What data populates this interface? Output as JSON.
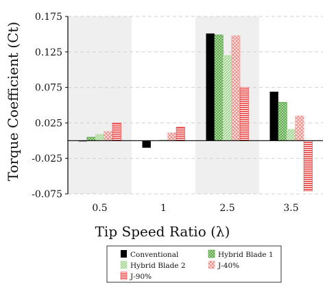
{
  "chart_data": {
    "type": "bar",
    "categories": [
      "0.5",
      "1",
      "2.5",
      "3.5"
    ],
    "xlabel": "Tip Speed Ratio (λ)",
    "ylabel": "Torque Coefficient (Ct)",
    "ylim": [
      -0.075,
      0.175
    ],
    "yticks": [
      "0.175",
      "0.125",
      "0.075",
      "0.025",
      "-0.025",
      "-0.075"
    ],
    "ytick_values": [
      0.175,
      0.125,
      0.075,
      0.025,
      -0.025,
      -0.075
    ],
    "grid": "horizontal dashed",
    "shaded_categories": [
      "0.5",
      "2.5"
    ],
    "legend_position": "bottom",
    "series": [
      {
        "name": "Conventional",
        "values": [
          -0.001,
          -0.01,
          0.151,
          0.069
        ],
        "color": "#000000",
        "pattern": "solid"
      },
      {
        "name": "Hybrid Blade 1",
        "values": [
          0.005,
          0.0,
          0.149,
          0.054
        ],
        "color": "#4a9a3a",
        "pattern": "crosshatch"
      },
      {
        "name": "Hybrid Blade 2",
        "values": [
          0.009,
          0.001,
          0.12,
          0.016
        ],
        "color": "#b7dba8",
        "pattern": "dots"
      },
      {
        "name": "J-40%",
        "values": [
          0.013,
          0.011,
          0.148,
          0.035
        ],
        "color": "#f2a9a4",
        "pattern": "diagonal"
      },
      {
        "name": "J-90%",
        "values": [
          0.025,
          0.019,
          0.075,
          -0.071
        ],
        "color": "#e8393a",
        "pattern": "horizontal"
      }
    ]
  }
}
